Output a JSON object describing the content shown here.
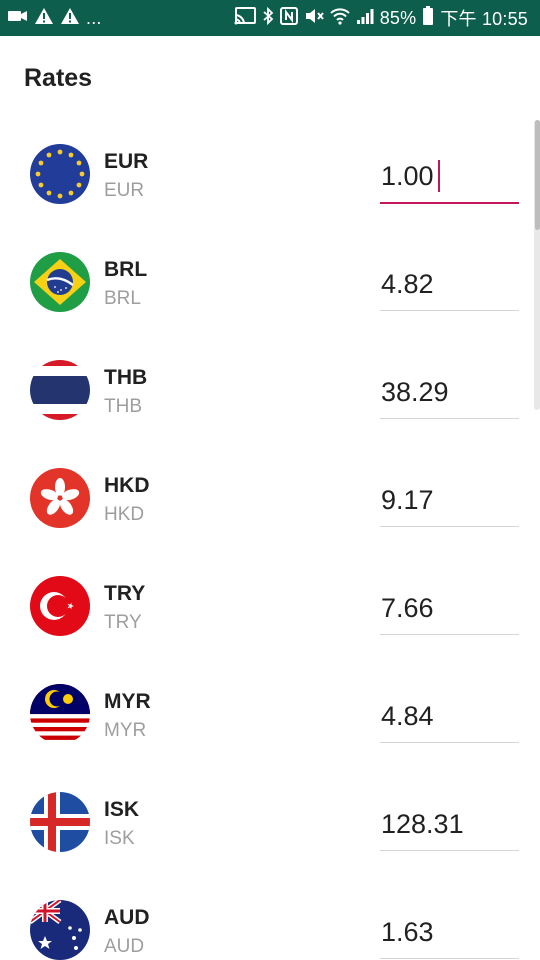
{
  "status_bar": {
    "left_icons": [
      "video-icon",
      "warning-icon",
      "warning-icon"
    ],
    "more": "...",
    "battery_percent": "85%",
    "time": "下午 10:55",
    "colors": {
      "background": "#0d5e4c",
      "foreground": "#ffffff"
    }
  },
  "header": {
    "title": "Rates"
  },
  "rates": [
    {
      "code": "EUR",
      "name": "EUR",
      "value": "1.00",
      "flag": "eu-flag-icon"
    },
    {
      "code": "BRL",
      "name": "BRL",
      "value": "4.82",
      "flag": "brazil-flag-icon"
    },
    {
      "code": "THB",
      "name": "THB",
      "value": "38.29",
      "flag": "thailand-flag-icon"
    },
    {
      "code": "HKD",
      "name": "HKD",
      "value": "9.17",
      "flag": "hong-kong-flag-icon"
    },
    {
      "code": "TRY",
      "name": "TRY",
      "value": "7.66",
      "flag": "turkey-flag-icon"
    },
    {
      "code": "MYR",
      "name": "MYR",
      "value": "4.84",
      "flag": "malaysia-flag-icon"
    },
    {
      "code": "ISK",
      "name": "ISK",
      "value": "128.31",
      "flag": "iceland-flag-icon"
    },
    {
      "code": "AUD",
      "name": "AUD",
      "value": "1.63",
      "flag": "australia-flag-icon"
    }
  ],
  "colors": {
    "accent": "#c2185b",
    "primary_text": "#212121",
    "secondary_text": "#9e9e9e"
  }
}
